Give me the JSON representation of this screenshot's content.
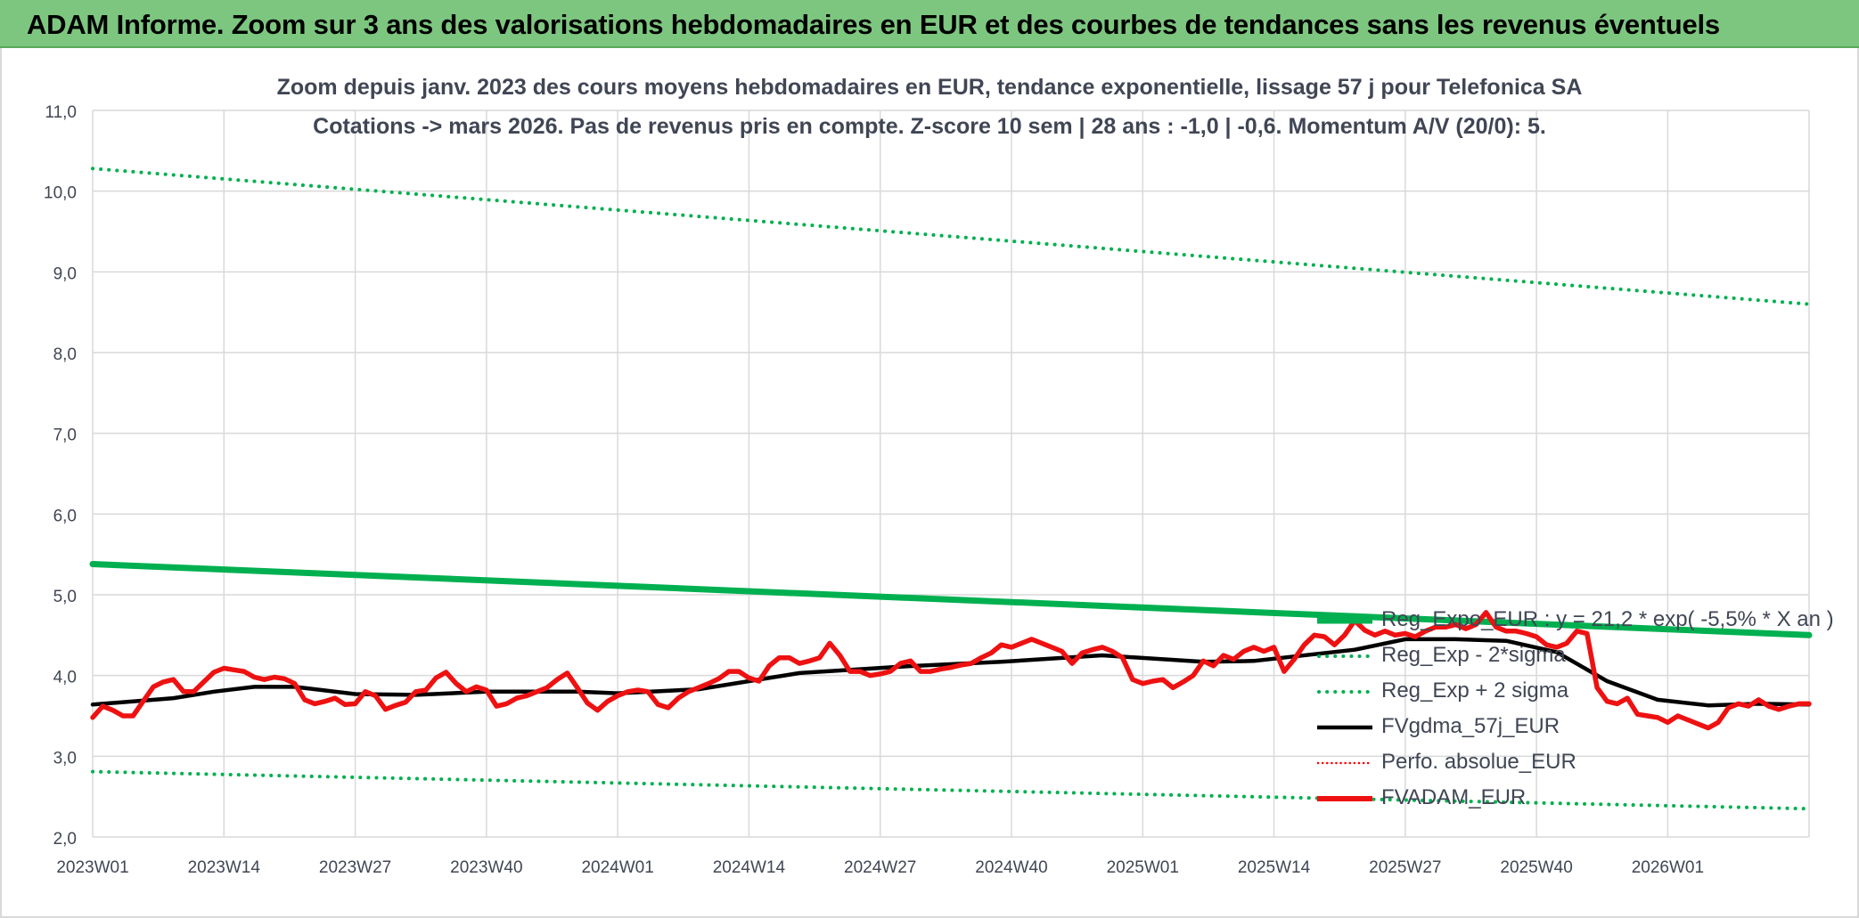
{
  "banner": {
    "title": "ADAM Informe. Zoom sur 3 ans des valorisations hebdomadaires en EUR et des courbes de tendances sans les revenus éventuels"
  },
  "chart_data": {
    "type": "line",
    "title": "Zoom depuis janv. 2023 des cours moyens hebdomadaires en EUR, tendance exponentielle, lissage 57 j pour Telefonica SA",
    "subtitle": "Cotations -> mars 2026. Pas de revenus pris en compte. Z-score 10 sem | 28 ans : -1,0 | -0,6. Momentum A/V (20/0): 5.",
    "xlabel": "",
    "ylabel": "",
    "ylim": [
      2.0,
      11.0
    ],
    "y_ticks": [
      "2,0",
      "3,0",
      "4,0",
      "5,0",
      "6,0",
      "7,0",
      "8,0",
      "9,0",
      "10,0",
      "11,0"
    ],
    "x_ticks": [
      "2023W01",
      "2023W14",
      "2023W27",
      "2023W40",
      "2024W01",
      "2024W14",
      "2024W27",
      "2024W40",
      "2025W01",
      "2025W14",
      "2025W27",
      "2025W40",
      "2026W01"
    ],
    "x_range_weeks": [
      0,
      170
    ],
    "grid": true,
    "legend_position": "bottom-right",
    "colors": {
      "reg_expo": "#00b050",
      "sigma_bands": "#00b050",
      "fvgdma": "#000000",
      "perfo": "#ff0000",
      "fvadam": "#ee1111",
      "grid": "#d9d9d9",
      "axis_text": "#404654"
    },
    "series": [
      {
        "name": "Reg_Expo_EUR : y = 21,2 * exp( -5,5% * X an )",
        "style": "solid-thick",
        "x": [
          0,
          170
        ],
        "values": [
          5.38,
          4.5
        ]
      },
      {
        "name": "Reg_Exp - 2*sigma",
        "style": "dotted",
        "x": [
          0,
          170
        ],
        "values": [
          2.81,
          2.35
        ]
      },
      {
        "name": "Reg_Exp + 2 sigma",
        "style": "dotted",
        "x": [
          0,
          170
        ],
        "values": [
          10.28,
          8.6
        ]
      },
      {
        "name": "FVgdma_57j_EUR",
        "style": "solid",
        "x": [
          0,
          8,
          12,
          16,
          20,
          26,
          32,
          39,
          48,
          52,
          60,
          70,
          80,
          90,
          100,
          110,
          115,
          125,
          130,
          135,
          140,
          145,
          150,
          155,
          160,
          165,
          170
        ],
        "values": [
          3.64,
          3.72,
          3.8,
          3.86,
          3.86,
          3.77,
          3.76,
          3.8,
          3.8,
          3.78,
          3.83,
          4.03,
          4.11,
          4.17,
          4.25,
          4.17,
          4.18,
          4.32,
          4.45,
          4.45,
          4.43,
          4.29,
          3.93,
          3.7,
          3.63,
          3.65,
          3.64
        ]
      },
      {
        "name": "Perfo. absolue_EUR",
        "style": "dotted",
        "x": [],
        "values": []
      },
      {
        "name": "FVADAM_EUR",
        "style": "solid-thick",
        "x": [
          0,
          1,
          2,
          3,
          4,
          5,
          6,
          7,
          8,
          9,
          10,
          11,
          12,
          13,
          14,
          15,
          16,
          17,
          18,
          19,
          20,
          21,
          22,
          23,
          24,
          25,
          26,
          27,
          28,
          29,
          30,
          31,
          32,
          33,
          34,
          35,
          36,
          37,
          38,
          39,
          40,
          41,
          42,
          43,
          44,
          45,
          46,
          47,
          48,
          49,
          50,
          51,
          52,
          53,
          54,
          55,
          56,
          57,
          58,
          59,
          60,
          61,
          62,
          63,
          64,
          65,
          66,
          67,
          68,
          69,
          70,
          71,
          72,
          73,
          74,
          75,
          76,
          77,
          78,
          79,
          80,
          81,
          82,
          83,
          84,
          85,
          86,
          87,
          88,
          89,
          90,
          91,
          92,
          93,
          94,
          95,
          96,
          97,
          98,
          99,
          100,
          101,
          102,
          103,
          104,
          105,
          106,
          107,
          108,
          109,
          110,
          111,
          112,
          113,
          114,
          115,
          116,
          117,
          118,
          119,
          120,
          121,
          122,
          123,
          124,
          125,
          126,
          127,
          128,
          129,
          130,
          131,
          132,
          133,
          134,
          135,
          136,
          137,
          138,
          139,
          140,
          141,
          142,
          143,
          144,
          145,
          146,
          147,
          148,
          149,
          150,
          151,
          152,
          153,
          154,
          155,
          156,
          157,
          158,
          159,
          160,
          161,
          162,
          163,
          164,
          165,
          166,
          167,
          168,
          169,
          170
        ],
        "values": [
          3.48,
          3.62,
          3.57,
          3.5,
          3.5,
          3.68,
          3.86,
          3.92,
          3.95,
          3.8,
          3.8,
          3.92,
          4.04,
          4.09,
          4.07,
          4.05,
          3.98,
          3.95,
          3.98,
          3.96,
          3.9,
          3.7,
          3.65,
          3.68,
          3.72,
          3.64,
          3.65,
          3.8,
          3.75,
          3.58,
          3.63,
          3.67,
          3.8,
          3.82,
          3.97,
          4.04,
          3.9,
          3.8,
          3.86,
          3.82,
          3.62,
          3.65,
          3.72,
          3.75,
          3.8,
          3.85,
          3.95,
          4.03,
          3.85,
          3.66,
          3.57,
          3.68,
          3.75,
          3.8,
          3.82,
          3.8,
          3.64,
          3.6,
          3.72,
          3.8,
          3.85,
          3.9,
          3.96,
          4.05,
          4.05,
          3.97,
          3.93,
          4.12,
          4.22,
          4.22,
          4.15,
          4.18,
          4.22,
          4.4,
          4.25,
          4.05,
          4.05,
          4.0,
          4.02,
          4.05,
          4.15,
          4.18,
          4.05,
          4.05,
          4.08,
          4.1,
          4.13,
          4.15,
          4.22,
          4.28,
          4.38,
          4.35,
          4.4,
          4.45,
          4.4,
          4.35,
          4.3,
          4.15,
          4.28,
          4.32,
          4.35,
          4.3,
          4.22,
          3.95,
          3.9,
          3.93,
          3.95,
          3.85,
          3.92,
          4.0,
          4.18,
          4.12,
          4.25,
          4.2,
          4.3,
          4.35,
          4.3,
          4.35,
          4.05,
          4.2,
          4.38,
          4.5,
          4.48,
          4.38,
          4.5,
          4.68,
          4.56,
          4.5,
          4.55,
          4.5,
          4.52,
          4.48,
          4.55,
          4.6,
          4.6,
          4.63,
          4.58,
          4.63,
          4.78,
          4.6,
          4.55,
          4.55,
          4.52,
          4.48,
          4.38,
          4.35,
          4.4,
          4.55,
          4.52,
          3.85,
          3.68,
          3.65,
          3.72,
          3.52,
          3.5,
          3.48,
          3.42,
          3.5,
          3.45,
          3.4,
          3.35,
          3.42,
          3.6,
          3.65,
          3.62,
          3.7,
          3.62,
          3.58,
          3.62,
          3.65,
          3.65
        ]
      }
    ]
  }
}
